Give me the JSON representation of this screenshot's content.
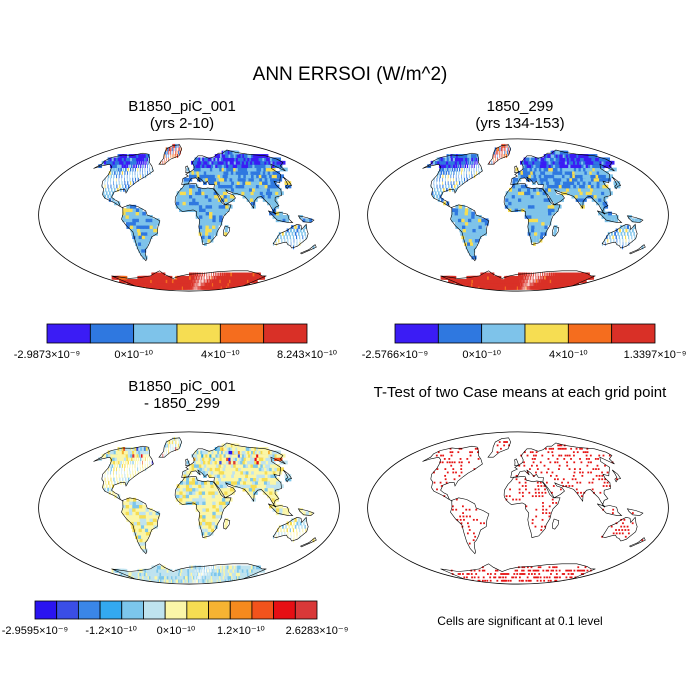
{
  "chart_data": [
    {
      "type": "heatmap",
      "title": "B1850_piC_001",
      "subtitle": "(yrs 2-10)",
      "colorbar": {
        "colors": [
          "#3b1cf5",
          "#2f78e0",
          "#7ec3ea",
          "#f6dd52",
          "#f56d1e",
          "#d93027"
        ],
        "labels": [
          "-2.9873×10⁻⁹",
          "0×10⁻¹⁰",
          "4×10⁻¹⁰",
          "8.243×10⁻¹⁰"
        ]
      }
    },
    {
      "type": "heatmap",
      "title": "1850_299",
      "subtitle": "(yrs 134-153)",
      "colorbar": {
        "colors": [
          "#3b1cf5",
          "#2f78e0",
          "#7ec3ea",
          "#f6dd52",
          "#f56d1e",
          "#d93027"
        ],
        "labels": [
          "-2.5766×10⁻⁹",
          "0×10⁻¹⁰",
          "4×10⁻¹⁰",
          "1.3397×10⁻⁹"
        ]
      }
    },
    {
      "type": "heatmap",
      "title": "B1850_piC_001",
      "subtitle": "- 1850_299",
      "colorbar": {
        "colors": [
          "#2a14f0",
          "#3a4ee6",
          "#3a86e8",
          "#33a9f0",
          "#7cc6ec",
          "#bfe3ef",
          "#fbf6a8",
          "#f6dd52",
          "#f6b332",
          "#f58a1e",
          "#f2531c",
          "#e60f14",
          "#d93838"
        ],
        "labels": [
          "-2.9595×10⁻⁹",
          "-1.2×10⁻¹⁰",
          "0×10⁻¹⁰",
          "1.2×10⁻¹⁰",
          "2.6283×10⁻⁹"
        ]
      }
    },
    {
      "type": "scatter",
      "title": "T-Test of two Case means at each grid point",
      "note": "Cells are significant at 0.1 level"
    }
  ],
  "page": {
    "title": "ANN ERRSOI (W/m^2)"
  },
  "colors": {
    "ocean": "#ffffff",
    "land_base": "#7ec3ea",
    "land_outline": "#000000",
    "antarctica_pos": "#d93027",
    "significance": "#e61414"
  }
}
